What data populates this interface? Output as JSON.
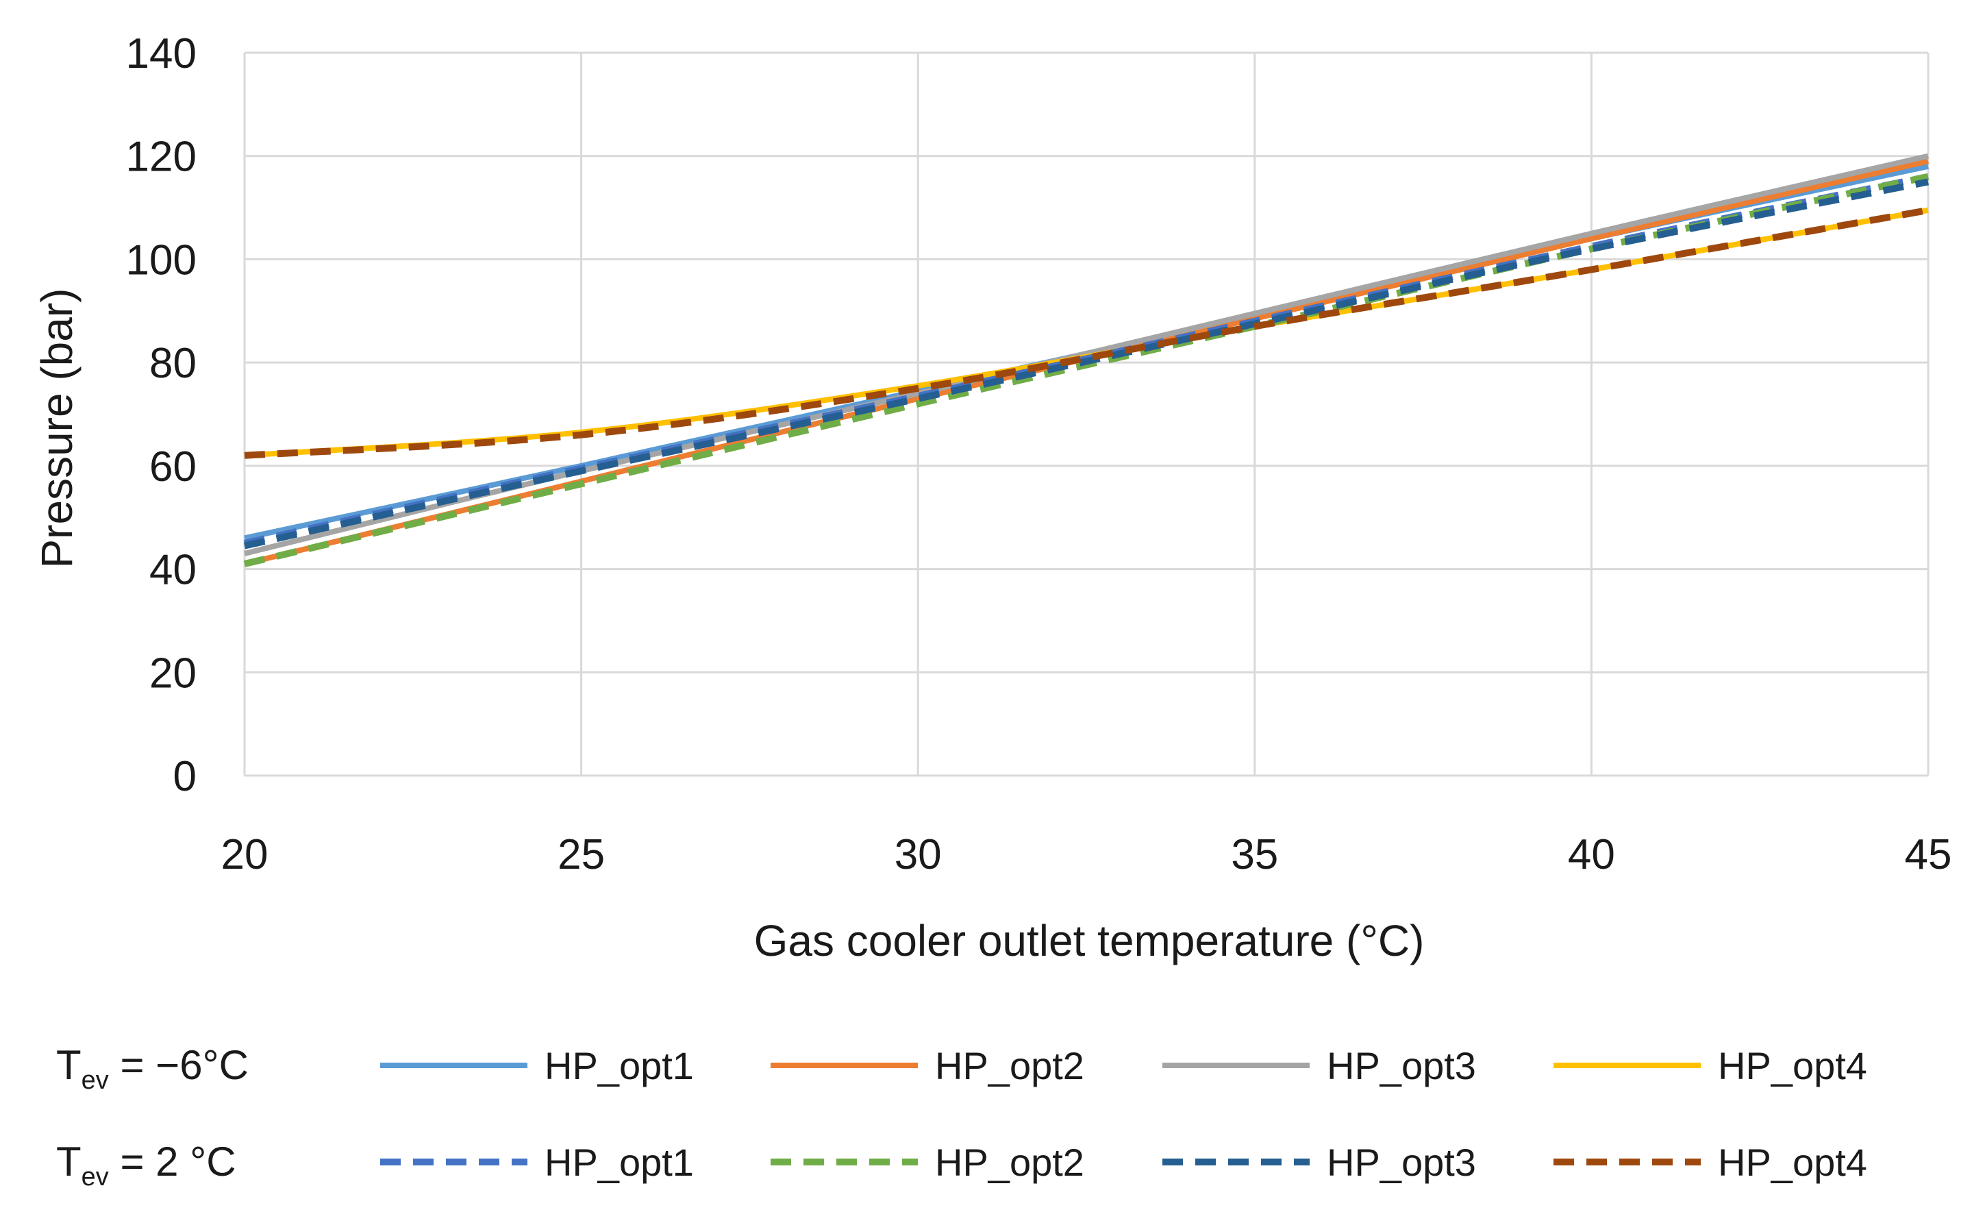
{
  "chart_data": {
    "type": "line",
    "title": "",
    "xlabel": "Gas cooler outlet temperature (°C)",
    "ylabel": "Pressure (bar)",
    "xlim": [
      20,
      45
    ],
    "ylim": [
      0,
      140
    ],
    "xticks": [
      20,
      25,
      30,
      35,
      40,
      45
    ],
    "yticks": [
      0,
      20,
      40,
      60,
      80,
      100,
      120,
      140
    ],
    "grid": true,
    "legend_position": "bottom",
    "legend_groups": [
      {
        "label_main": "T",
        "label_sub": "ev",
        "label_rest": " = −6°C",
        "style": "solid"
      },
      {
        "label_main": "T",
        "label_sub": "ev",
        "label_rest": " = 2 °C",
        "style": "dashed"
      }
    ],
    "x": [
      20,
      25,
      30,
      35,
      40,
      45
    ],
    "series": [
      {
        "name": "HP_opt1",
        "group": "T_ev = −6°C",
        "dash": "solid",
        "color": "#5b9bd5",
        "values": [
          46,
          60,
          74.5,
          89,
          104,
          118
        ]
      },
      {
        "name": "HP_opt2",
        "group": "T_ev = −6°C",
        "dash": "solid",
        "color": "#ed7d31",
        "values": [
          41,
          57,
          73,
          88.5,
          104,
          119
        ]
      },
      {
        "name": "HP_opt3",
        "group": "T_ev = −6°C",
        "dash": "solid",
        "color": "#a5a5a5",
        "values": [
          43,
          59,
          74,
          89.5,
          105,
          120
        ]
      },
      {
        "name": "HP_opt4",
        "group": "T_ev = −6°C",
        "dash": "solid",
        "color": "#ffc000",
        "values": [
          62,
          66.5,
          75.5,
          87,
          98,
          109.5
        ]
      },
      {
        "name": "HP_opt1",
        "group": "T_ev = 2 °C",
        "dash": "dashed",
        "color": "#4472c4",
        "values": [
          45,
          59.5,
          73.5,
          88,
          102.5,
          116
        ]
      },
      {
        "name": "HP_opt2",
        "group": "T_ev = 2 °C",
        "dash": "dashed",
        "color": "#70ad47",
        "values": [
          41,
          56.5,
          72,
          87,
          102,
          116
        ]
      },
      {
        "name": "HP_opt3",
        "group": "T_ev = 2 °C",
        "dash": "dashed",
        "color": "#255e91",
        "values": [
          44.5,
          59,
          73,
          87.5,
          102,
          115
        ]
      },
      {
        "name": "HP_opt4",
        "group": "T_ev = 2 °C",
        "dash": "dashed",
        "color": "#9e480e",
        "values": [
          62,
          66,
          75,
          87,
          98,
          109.5
        ]
      }
    ]
  },
  "colors": {
    "background": "#ffffff",
    "grid": "#d9d9d9",
    "text": "#1a1a1a"
  }
}
